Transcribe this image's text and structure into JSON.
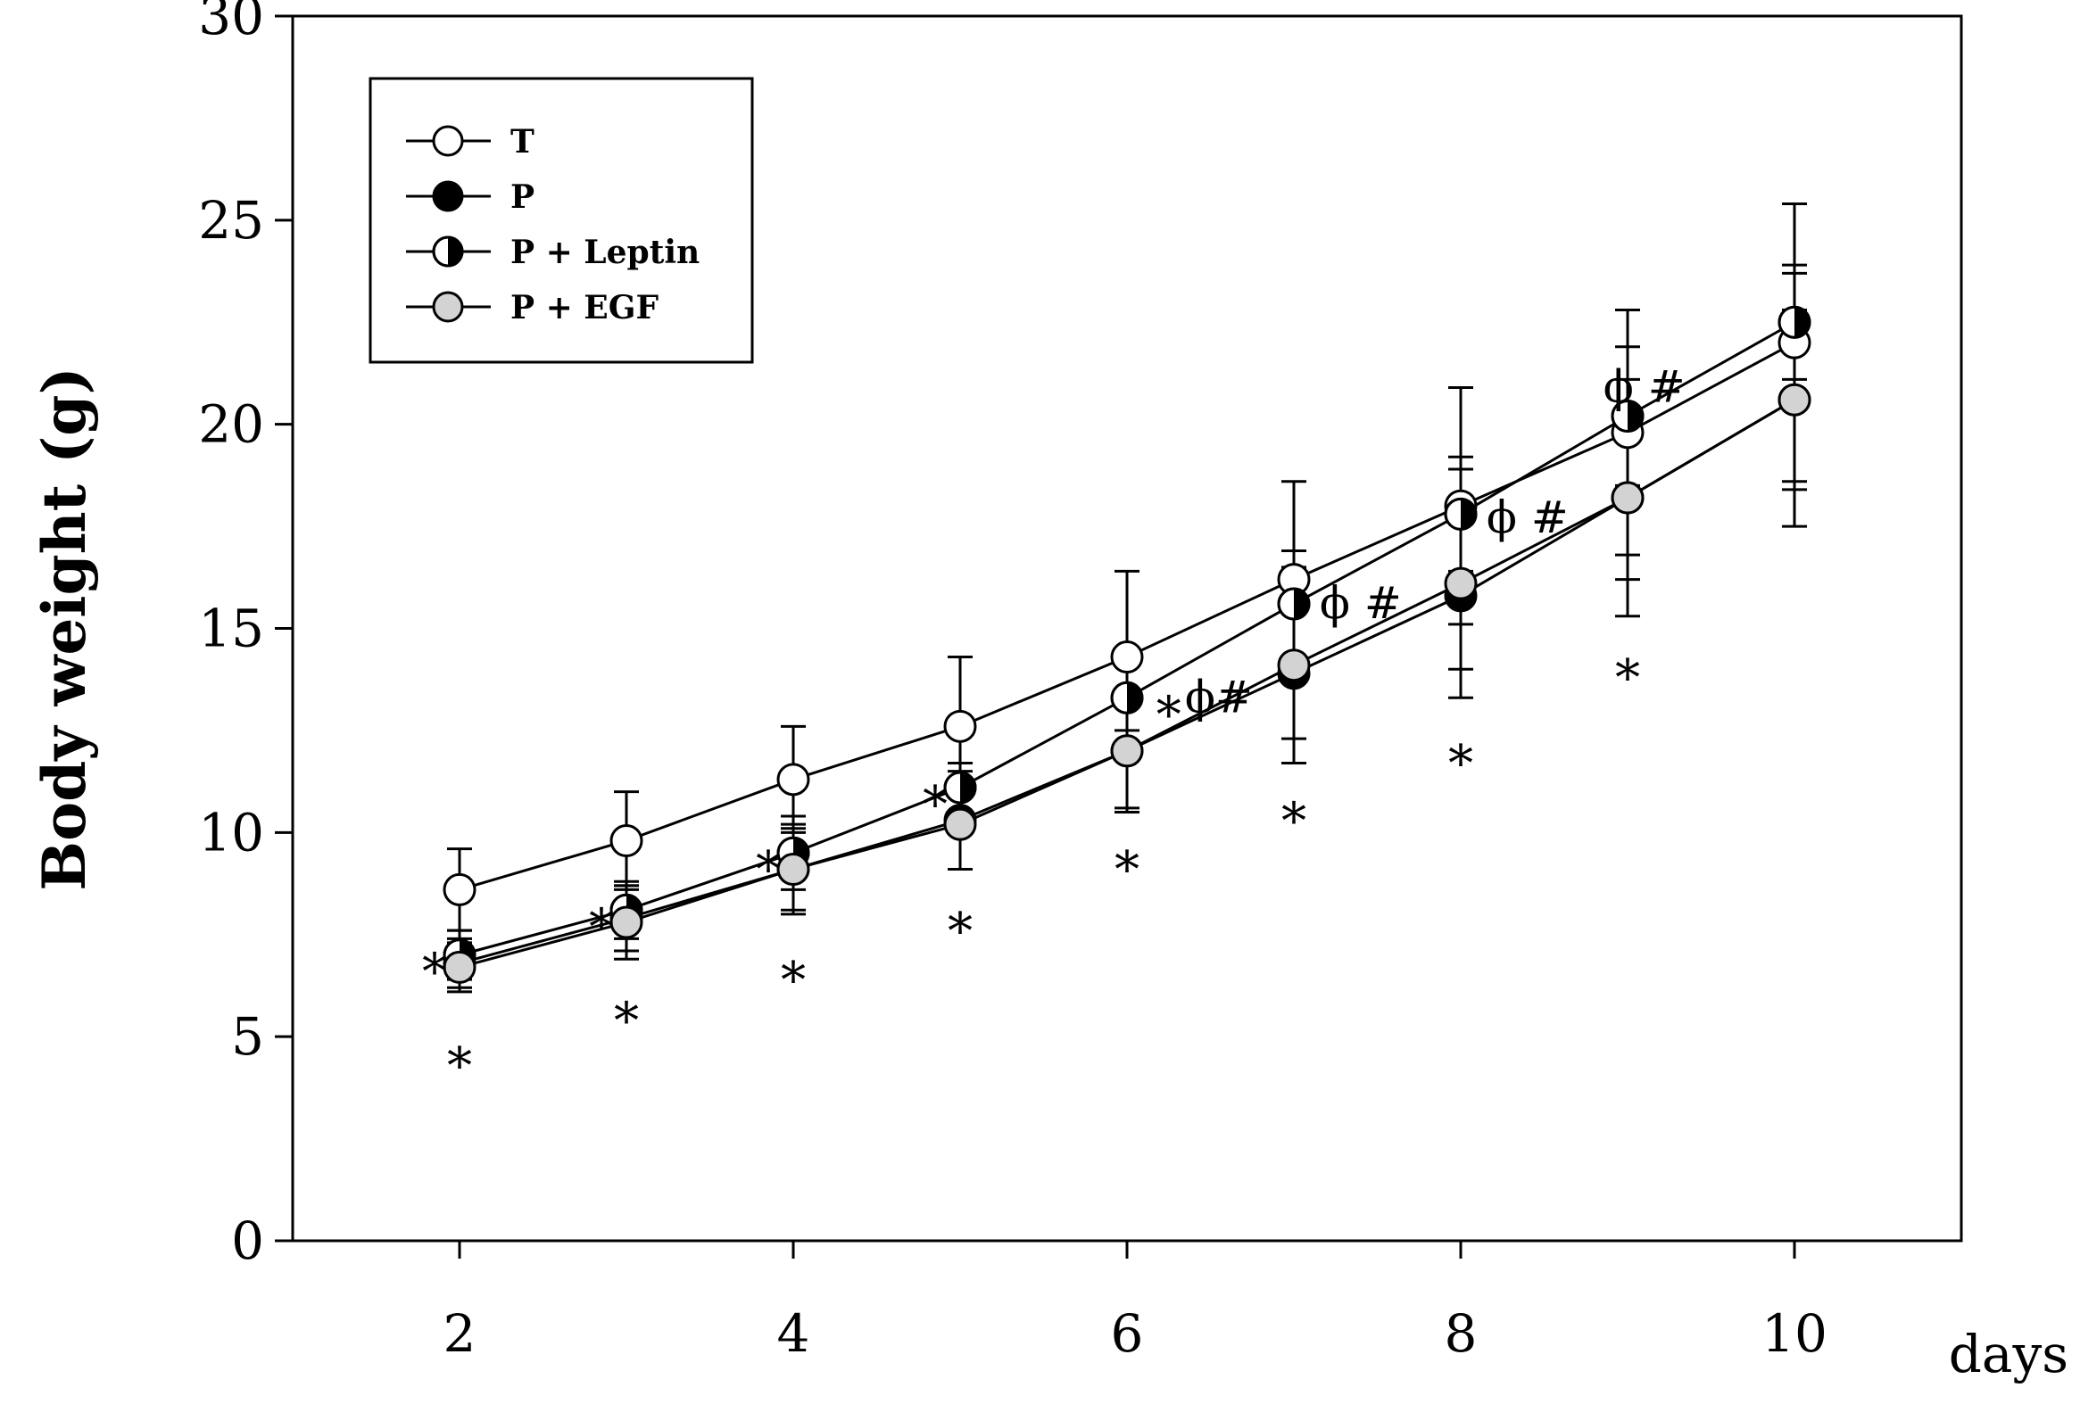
{
  "chart_data": {
    "type": "line",
    "title": "",
    "xlabel": "days",
    "ylabel": "Body weight (g)",
    "xlim": [
      1,
      11
    ],
    "ylim": [
      0,
      30
    ],
    "xticks": [
      2,
      4,
      6,
      8,
      10
    ],
    "yticks": [
      0,
      5,
      10,
      15,
      20,
      25,
      30
    ],
    "grid": false,
    "legend_position": "top-left",
    "x": [
      2,
      3,
      4,
      5,
      6,
      7,
      8,
      9,
      10
    ],
    "series": [
      {
        "name": "T",
        "marker": "open",
        "values": [
          8.6,
          9.8,
          11.3,
          12.6,
          14.3,
          16.2,
          18.0,
          19.8,
          22.0
        ],
        "errors": [
          1.0,
          1.2,
          1.3,
          1.7,
          2.1,
          2.4,
          2.9,
          3.0,
          3.4
        ]
      },
      {
        "name": "P",
        "marker": "filled",
        "values": [
          6.8,
          7.9,
          9.1,
          10.3,
          12.0,
          13.9,
          15.8,
          18.2,
          20.6
        ],
        "errors": [
          0.6,
          0.8,
          1.0,
          1.2,
          1.4,
          1.6,
          1.8,
          2.0,
          2.2
        ]
      },
      {
        "name": "P + Leptin",
        "marker": "half",
        "values": [
          7.0,
          8.1,
          9.5,
          11.1,
          13.3,
          15.6,
          17.8,
          20.2,
          22.5
        ],
        "errors": [
          0.6,
          0.7,
          0.9,
          0.6,
          0.8,
          1.3,
          1.4,
          1.7,
          1.4
        ]
      },
      {
        "name": "P + EGF",
        "marker": "grey",
        "values": [
          6.7,
          7.8,
          9.1,
          10.2,
          12.0,
          14.1,
          16.1,
          18.2,
          20.6
        ],
        "errors": [
          0.6,
          0.9,
          1.1,
          1.1,
          1.5,
          2.4,
          2.8,
          2.9,
          3.1
        ]
      }
    ],
    "annotations": [
      {
        "text": "*",
        "x": 1.85,
        "y": 7.0
      },
      {
        "text": "*",
        "x": 2.0,
        "y": 4.7
      },
      {
        "text": "*",
        "x": 2.85,
        "y": 8.1
      },
      {
        "text": "*",
        "x": 3.0,
        "y": 5.8
      },
      {
        "text": "*",
        "x": 3.85,
        "y": 9.5
      },
      {
        "text": "*",
        "x": 4.0,
        "y": 6.8
      },
      {
        "text": "*",
        "x": 4.85,
        "y": 11.1
      },
      {
        "text": "*",
        "x": 5.0,
        "y": 8.0
      },
      {
        "text": "*",
        "x": 6.25,
        "y": 13.3
      },
      {
        "text": "ϕ#",
        "x": 6.55,
        "y": 13.3
      },
      {
        "text": "*",
        "x": 6.0,
        "y": 9.5
      },
      {
        "text": "ϕ #",
        "x": 7.4,
        "y": 15.6
      },
      {
        "text": "*",
        "x": 7.0,
        "y": 10.7
      },
      {
        "text": "ϕ #",
        "x": 8.4,
        "y": 17.7
      },
      {
        "text": "*",
        "x": 8.0,
        "y": 12.1
      },
      {
        "text": "ϕ #",
        "x": 9.1,
        "y": 20.9
      },
      {
        "text": "*",
        "x": 9.0,
        "y": 14.2
      }
    ],
    "colors": {
      "line": "#000000",
      "open_fill": "#ffffff",
      "grey_fill": "#d3d3d3"
    }
  }
}
